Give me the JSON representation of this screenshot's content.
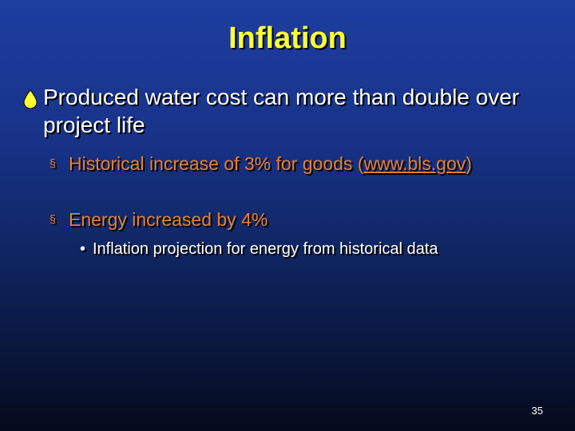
{
  "slide": {
    "title": "Inflation",
    "main_bullet": {
      "text": "Produced water cost can more than double over project life",
      "icon": "water-drop-icon"
    },
    "sub_bullets": [
      {
        "text_before": "Historical increase of 3% for goods (",
        "link": "www.bls.gov",
        "text_after": ")",
        "icon": "square-bullet-icon"
      },
      {
        "text": "Energy increased by 4%",
        "icon": "square-bullet-icon"
      }
    ],
    "sub_sub_bullet": {
      "text": "Inflation projection for energy from historical data",
      "icon": "dot-bullet-icon"
    },
    "page_number": "35"
  },
  "colors": {
    "title": "#ffff33",
    "main_text": "#ffffff",
    "sub_text": "#e87f2e",
    "bg_top": "#1d3ea0",
    "bg_bottom": "#050a1c"
  }
}
